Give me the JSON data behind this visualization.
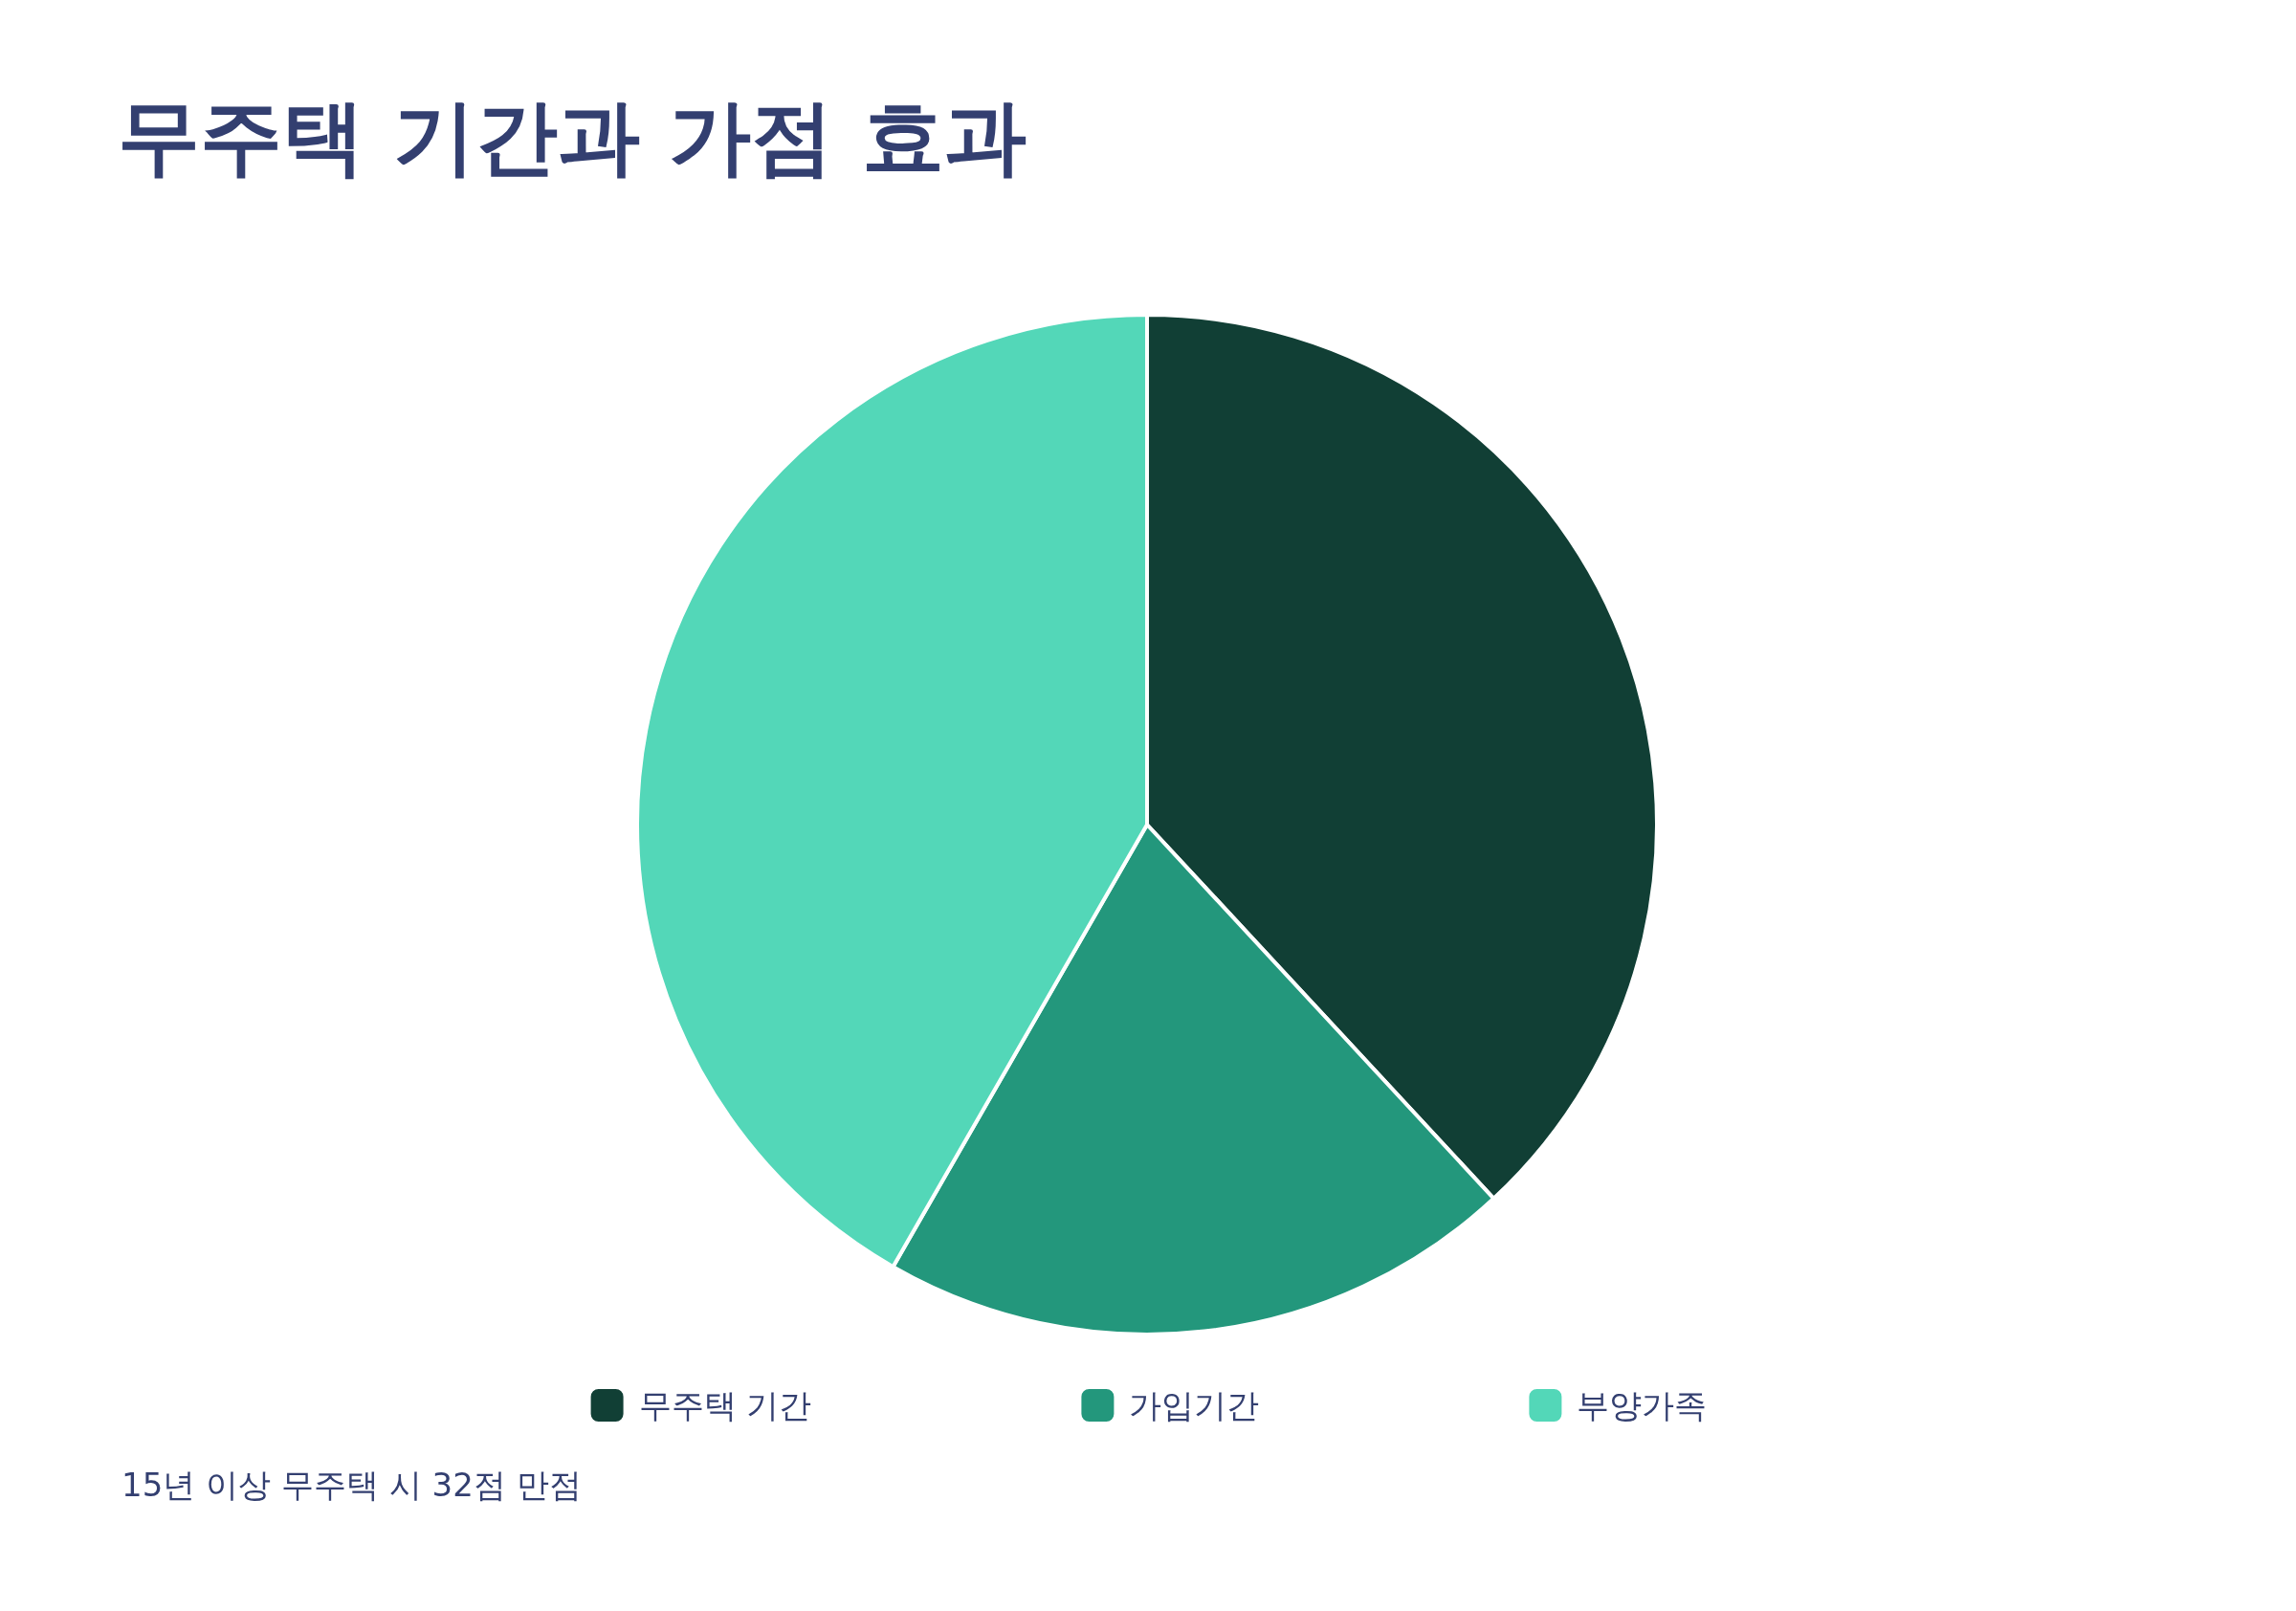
{
  "chart_data": {
    "type": "pie",
    "title": "무주택 기간과 가점 효과",
    "categories": [
      "무주택 기간",
      "가입기간",
      "부양가족"
    ],
    "values": [
      38.1,
      20.2,
      41.7
    ],
    "colors": [
      "#113f35",
      "#23977c",
      "#53d7b8"
    ],
    "legend": "bottom",
    "annotations": [
      "15년 이상 무주택 시 32점 만점"
    ]
  }
}
